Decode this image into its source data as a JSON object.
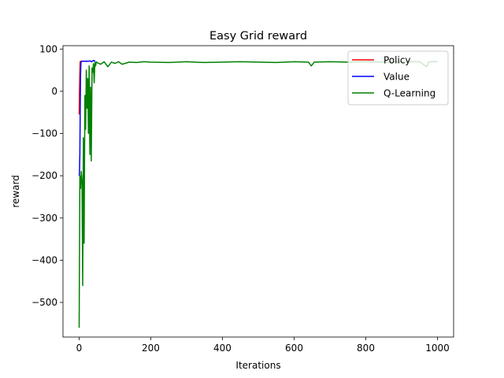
{
  "chart_data": {
    "type": "line",
    "title": "Easy Grid reward",
    "xlabel": "Iterations",
    "ylabel": "reward",
    "xlim": [
      -45,
      1045
    ],
    "ylim": [
      -582,
      108
    ],
    "xticks": [
      0,
      200,
      400,
      600,
      800,
      1000
    ],
    "yticks": [
      100,
      0,
      -100,
      -200,
      -300,
      -400,
      -500
    ],
    "xtick_labels": [
      "0",
      "200",
      "400",
      "600",
      "800",
      "1000"
    ],
    "ytick_labels": [
      "100",
      "0",
      "−100",
      "−200",
      "−300",
      "−400",
      "−500"
    ],
    "grid": false,
    "legend_position": "top-right",
    "series": [
      {
        "name": "Policy",
        "color": "#ff0000",
        "x": [
          0,
          1,
          2,
          3,
          5,
          10,
          15,
          20
        ],
        "y": [
          -55,
          -5,
          45,
          70,
          71,
          71,
          71,
          71
        ]
      },
      {
        "name": "Value",
        "color": "#0000ff",
        "x": [
          0,
          1,
          2,
          3,
          4,
          5,
          6,
          8,
          10,
          15,
          20,
          25,
          30,
          35,
          40,
          45
        ],
        "y": [
          -200,
          -195,
          -150,
          -60,
          40,
          68,
          70,
          71,
          71,
          71,
          71,
          71,
          72,
          70,
          73,
          71
        ]
      },
      {
        "name": "Q-Learning",
        "color": "#008000",
        "x": [
          0,
          2,
          4,
          6,
          8,
          10,
          12,
          14,
          16,
          18,
          20,
          22,
          24,
          26,
          28,
          30,
          32,
          34,
          36,
          38,
          40,
          42,
          44,
          46,
          48,
          50,
          60,
          70,
          80,
          90,
          100,
          110,
          120,
          140,
          160,
          180,
          200,
          250,
          300,
          350,
          400,
          450,
          500,
          550,
          600,
          640,
          648,
          656,
          700,
          750,
          800,
          850,
          900,
          950,
          970,
          975,
          980,
          1000
        ],
        "y": [
          -560,
          -200,
          -230,
          -190,
          -210,
          -460,
          -110,
          -360,
          -10,
          -90,
          50,
          -40,
          30,
          -100,
          60,
          -150,
          10,
          -165,
          55,
          45,
          65,
          20,
          68,
          60,
          70,
          68,
          64,
          70,
          58,
          69,
          66,
          70,
          64,
          69,
          68,
          70,
          69,
          68,
          70,
          68,
          69,
          70,
          69,
          68,
          70,
          69,
          60,
          69,
          70,
          69,
          70,
          69,
          70,
          70,
          58,
          69,
          70,
          70
        ]
      }
    ]
  }
}
